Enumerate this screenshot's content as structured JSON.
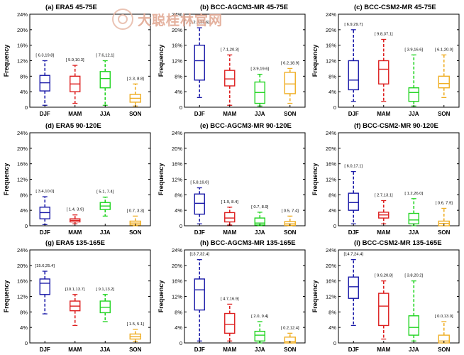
{
  "watermark": {
    "text": "大聪桂林官网"
  },
  "chart_data": [
    {
      "type": "box",
      "label": "(a)",
      "model": "ERA5",
      "region": "45-75E",
      "ylabel": "Frequency",
      "yticks": [
        "0",
        "4%",
        "8%",
        "12%",
        "16%",
        "20%",
        "24%"
      ],
      "ylim": [
        0,
        24
      ],
      "categories": [
        "DJF",
        "MAM",
        "JJA",
        "SON"
      ],
      "ranges": [
        "[ 6.3,19.8]",
        "[ 5.9,10.3]",
        "[ 7.6,12.1]",
        "[ 2.3, 8.8]"
      ],
      "boxes": [
        {
          "min": 0.5,
          "q1": 4.2,
          "median": 6.3,
          "q3": 8.2,
          "max": 12
        },
        {
          "min": 1,
          "q1": 4,
          "median": 6,
          "q3": 8,
          "max": 10.8
        },
        {
          "min": 0.5,
          "q1": 5,
          "median": 7.4,
          "q3": 9.2,
          "max": 12
        },
        {
          "min": 0.3,
          "q1": 1.3,
          "median": 2.3,
          "q3": 3.3,
          "max": 6
        }
      ]
    },
    {
      "type": "box",
      "label": "(d)",
      "model": "ERA5",
      "region": "90-120E",
      "ylabel": "Frequency",
      "yticks": [
        "0",
        "4%",
        "8%",
        "12%",
        "16%",
        "20%",
        "24%"
      ],
      "ylim": [
        0,
        24
      ],
      "categories": [
        "DJF",
        "MAM",
        "JJA",
        "SON"
      ],
      "ranges": [
        "[ 3.4,10.0]",
        "[ 1.4, 3.9]",
        "[ 5.1, 7.4]",
        "[ 0.7, 3.3]"
      ],
      "boxes": [
        {
          "min": 0.3,
          "q1": 1.8,
          "median": 3.4,
          "q3": 4.8,
          "max": 7.5
        },
        {
          "min": 0.5,
          "q1": 1,
          "median": 1.4,
          "q3": 1.8,
          "max": 2.8
        },
        {
          "min": 2.5,
          "q1": 4.2,
          "median": 5.1,
          "q3": 6,
          "max": 7.4
        },
        {
          "min": 0,
          "q1": 0.2,
          "median": 0.7,
          "q3": 1.2,
          "max": 2.5
        }
      ]
    },
    {
      "type": "box",
      "label": "(g)",
      "model": "ERA5",
      "region": "135-165E",
      "ylabel": "Frequency",
      "yticks": [
        "0",
        "4%",
        "8%",
        "12%",
        "16%",
        "20%",
        "24%"
      ],
      "ylim": [
        0,
        24
      ],
      "categories": [
        "DJF",
        "MAM",
        "JJA",
        "SON"
      ],
      "ranges": [
        "[15.6,25.4]",
        "[10.1,13.7]",
        "[ 9.1,13.2]",
        "[ 1.5, 5.1]"
      ],
      "boxes": [
        {
          "min": 7.5,
          "q1": 12.5,
          "median": 15.4,
          "q3": 16.5,
          "max": 18.5
        },
        {
          "min": 4.5,
          "q1": 8.3,
          "median": 9.5,
          "q3": 10.8,
          "max": 12.5
        },
        {
          "min": 5.5,
          "q1": 7.8,
          "median": 9.2,
          "q3": 10.8,
          "max": 12.5
        },
        {
          "min": 0.4,
          "q1": 1,
          "median": 1.6,
          "q3": 2.3,
          "max": 3.5
        }
      ]
    },
    {
      "type": "box",
      "label": "(b)",
      "model": "BCC-AGCM3-MR",
      "region": "45-75E",
      "ylabel": "Frequency",
      "yticks": [
        "0",
        "4%",
        "8%",
        "12%",
        "16%",
        "20%",
        "24%"
      ],
      "ylim": [
        0,
        24
      ],
      "categories": [
        "DJF",
        "MAM",
        "JJA",
        "SON"
      ],
      "ranges": [
        "[12.0,31.6]",
        "[ 7.1,20.3]",
        "[ 3.9,19.6]",
        "[ 6.2,18.9]"
      ],
      "boxes": [
        {
          "min": 2.5,
          "q1": 7,
          "median": 12,
          "q3": 16,
          "max": 20.5
        },
        {
          "min": 0.5,
          "q1": 5.5,
          "median": 7.3,
          "q3": 9.5,
          "max": 13.5
        },
        {
          "min": 0.3,
          "q1": 1,
          "median": 3.8,
          "q3": 6.5,
          "max": 8.5
        },
        {
          "min": 1,
          "q1": 3.5,
          "median": 6,
          "q3": 9,
          "max": 10
        }
      ]
    },
    {
      "type": "box",
      "label": "(e)",
      "model": "BCC-AGCM3-MR",
      "region": "90-120E",
      "ylabel": "Frequency",
      "yticks": [
        "0",
        "4%",
        "8%",
        "12%",
        "16%",
        "20%",
        "24%"
      ],
      "ylim": [
        0,
        24
      ],
      "categories": [
        "DJF",
        "MAM",
        "JJA",
        "SON"
      ],
      "ranges": [
        "[ 5.8,19.0]",
        "[ 1.9, 8.4]",
        "[ 0.7, 8.9]",
        "[ 0.5, 7.4]"
      ],
      "boxes": [
        {
          "min": 0.5,
          "q1": 3,
          "median": 5.8,
          "q3": 8.2,
          "max": 9.8
        },
        {
          "min": 0.2,
          "q1": 1,
          "median": 2,
          "q3": 3.4,
          "max": 4.8
        },
        {
          "min": 0,
          "q1": 0.2,
          "median": 0.7,
          "q3": 2,
          "max": 3.5
        },
        {
          "min": 0,
          "q1": 0.1,
          "median": 0.5,
          "q3": 1.1,
          "max": 2.5
        }
      ]
    },
    {
      "type": "box",
      "label": "(h)",
      "model": "BCC-AGCM3-MR",
      "region": "135-165E",
      "ylabel": "Frequency",
      "yticks": [
        "0",
        "4%",
        "8%",
        "12%",
        "16%",
        "20%",
        "24%"
      ],
      "ylim": [
        0,
        24
      ],
      "categories": [
        "DJF",
        "MAM",
        "JJA",
        "SON"
      ],
      "ranges": [
        "[13.7,32.4]",
        "[ 4.7,16.9]",
        "[ 2.0, 9.4]",
        "[ 0.2,12.4]"
      ],
      "boxes": [
        {
          "min": 0.5,
          "q1": 8.5,
          "median": 13.7,
          "q3": 16.5,
          "max": 21.5
        },
        {
          "min": 0.5,
          "q1": 2.5,
          "median": 4.8,
          "q3": 7.6,
          "max": 10
        },
        {
          "min": 0,
          "q1": 0.5,
          "median": 2,
          "q3": 3,
          "max": 5.5
        },
        {
          "min": 0,
          "q1": 0,
          "median": 0.3,
          "q3": 1.5,
          "max": 2.5
        }
      ]
    },
    {
      "type": "box",
      "label": "(c)",
      "model": "BCC-CSM2-MR",
      "region": "45-75E",
      "ylabel": "Frequency",
      "yticks": [
        "0",
        "4%",
        "8%",
        "12%",
        "16%",
        "20%",
        "24%"
      ],
      "ylim": [
        0,
        24
      ],
      "categories": [
        "DJF",
        "MAM",
        "JJA",
        "SON"
      ],
      "ranges": [
        "[ 6.9,29.7]",
        "[ 9.8,37.1]",
        "[ 3.9,16.6]",
        "[ 6.1,20.0]"
      ],
      "boxes": [
        {
          "min": 1.5,
          "q1": 4.5,
          "median": 7,
          "q3": 12,
          "max": 20
        },
        {
          "min": 1.5,
          "q1": 6,
          "median": 9.8,
          "q3": 12,
          "max": 17.5
        },
        {
          "min": 0.3,
          "q1": 1.5,
          "median": 3.8,
          "q3": 5,
          "max": 13.5
        },
        {
          "min": 2.5,
          "q1": 5,
          "median": 6.1,
          "q3": 8,
          "max": 13.5
        }
      ]
    },
    {
      "type": "box",
      "label": "(f)",
      "model": "BCC-CSM2-MR",
      "region": "90-120E",
      "ylabel": "Frequency",
      "yticks": [
        "0",
        "4%",
        "8%",
        "12%",
        "16%",
        "20%",
        "24%"
      ],
      "ylim": [
        0,
        24
      ],
      "categories": [
        "DJF",
        "MAM",
        "JJA",
        "SON"
      ],
      "ranges": [
        "[ 6.0,17.1]",
        "[ 2.7,13.1]",
        "[ 1.2,26.0]",
        "[ 0.6, 7.9]"
      ],
      "boxes": [
        {
          "min": 0.5,
          "q1": 4,
          "median": 6,
          "q3": 8.4,
          "max": 14
        },
        {
          "min": 0.5,
          "q1": 2,
          "median": 2.8,
          "q3": 3.5,
          "max": 6.5
        },
        {
          "min": 0,
          "q1": 0.5,
          "median": 1.5,
          "q3": 3.2,
          "max": 7
        },
        {
          "min": 0,
          "q1": 0,
          "median": 0.6,
          "q3": 1.2,
          "max": 4.5
        }
      ]
    },
    {
      "type": "box",
      "label": "(i)",
      "model": "BCC-CSM2-MR",
      "region": "135-165E",
      "ylabel": "Frequency",
      "yticks": [
        "0",
        "4%",
        "8%",
        "12%",
        "16%",
        "20%",
        "24%"
      ],
      "ylim": [
        0,
        24
      ],
      "categories": [
        "DJF",
        "MAM",
        "JJA",
        "SON"
      ],
      "ranges": [
        "[14.7,24.4]",
        "[ 9.9,20.8]",
        "[ 3.8,20.2]",
        "[ 0.0,13.0]"
      ],
      "boxes": [
        {
          "min": 4.5,
          "q1": 11.5,
          "median": 14.5,
          "q3": 17,
          "max": 21.5
        },
        {
          "min": 1,
          "q1": 4.5,
          "median": 9.5,
          "q3": 12.8,
          "max": 16
        },
        {
          "min": 0.5,
          "q1": 2,
          "median": 4,
          "q3": 7,
          "max": 16
        },
        {
          "min": 0,
          "q1": 0,
          "median": 0.5,
          "q3": 2,
          "max": 5.5
        }
      ]
    }
  ],
  "colors": {
    "DJF": "#1a1aa8",
    "MAM": "#dd2020",
    "JJA": "#22d422",
    "SON": "#efae24",
    "axis": "#000000",
    "text": "#000000"
  }
}
